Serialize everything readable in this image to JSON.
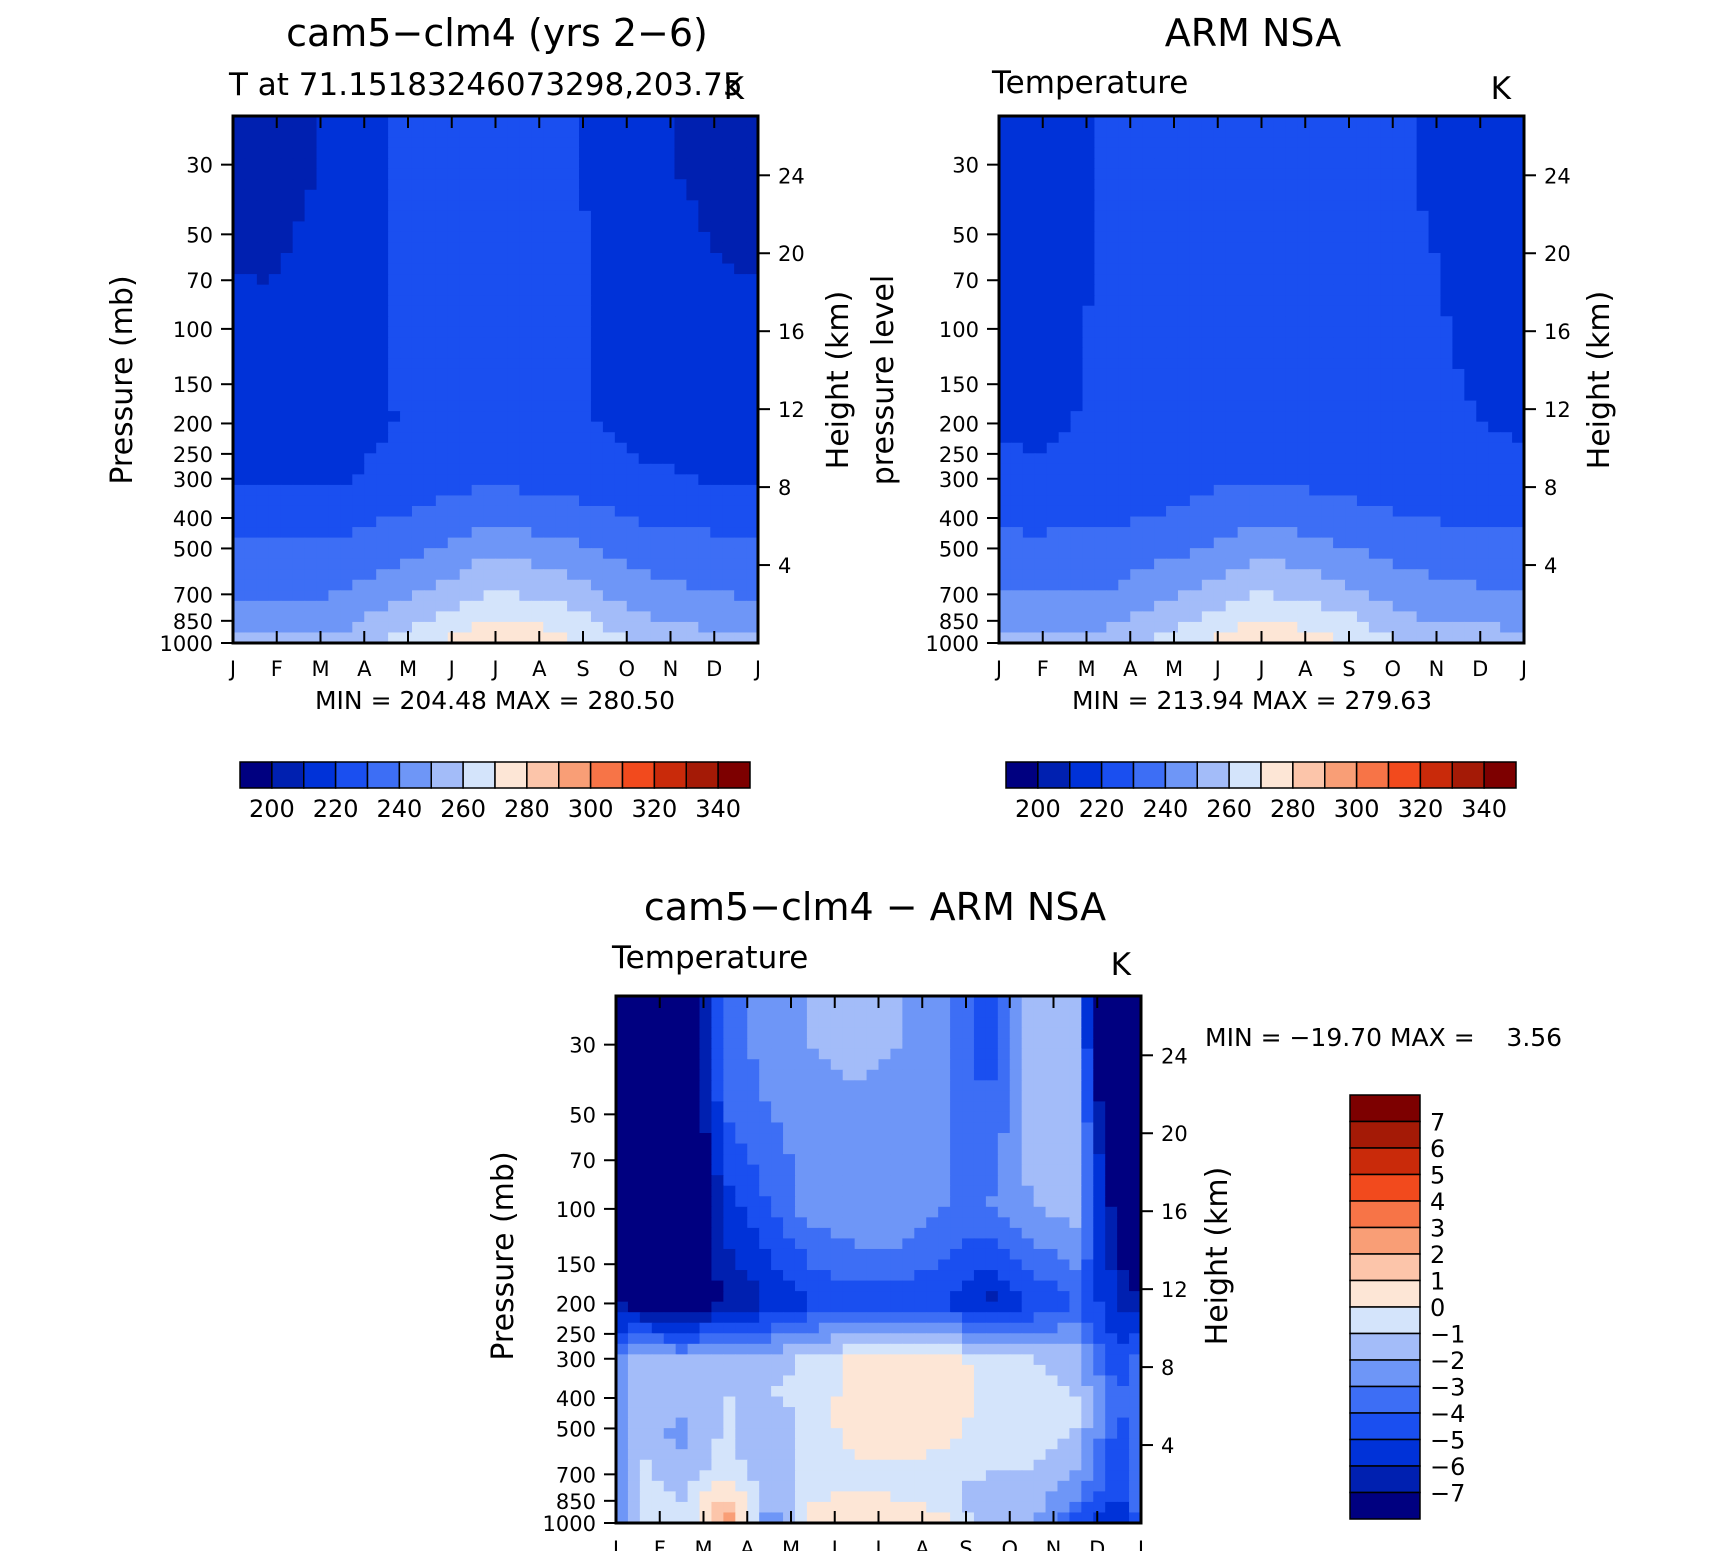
{
  "figure": {
    "type": "contour-panel-set",
    "month_ticks": [
      "J",
      "F",
      "M",
      "A",
      "M",
      "J",
      "J",
      "A",
      "S",
      "O",
      "N",
      "D",
      "J"
    ]
  },
  "colors": {
    "temperature_scale": [
      "#000080",
      "#0020b0",
      "#0032d8",
      "#1a4ff0",
      "#3d6ef5",
      "#6e96f7",
      "#a3bcf9",
      "#d4e4fb",
      "#fde6d6",
      "#fcc5aa",
      "#f99e76",
      "#f77447",
      "#f24a1d",
      "#c92a0a",
      "#a41a06",
      "#7d0000"
    ],
    "difference_scale": [
      "#000080",
      "#0020b0",
      "#0032d8",
      "#1a4ff0",
      "#3d6ef5",
      "#6e96f7",
      "#a3bcf9",
      "#d4e4fb",
      "#fde6d6",
      "#fcc5aa",
      "#f99e76",
      "#f77447",
      "#f24a1d",
      "#c92a0a",
      "#a41a06",
      "#7d0000"
    ]
  },
  "chart_data": [
    {
      "id": "model",
      "type": "heatmap",
      "title": "cam5−clm4 (yrs 2−6)",
      "subtitle_left": "T at 71.15183246073298,203.75",
      "subtitle_right": "K",
      "xlabel": "",
      "ylabel": "Pressure (mb)",
      "ylabel_right": "Height (km)",
      "x_ticks": [
        "J",
        "F",
        "M",
        "A",
        "M",
        "J",
        "J",
        "A",
        "S",
        "O",
        "N",
        "D",
        "J"
      ],
      "y_ticks": [
        "30",
        "50",
        "70",
        "100",
        "150",
        "200",
        "250",
        "300",
        "400",
        "500",
        "700",
        "850",
        "1000"
      ],
      "y_ticks_right": [
        "24",
        "20",
        "16",
        "12",
        "8",
        "4"
      ],
      "y_scale": "log",
      "ylim": [
        1000,
        21
      ],
      "min_max_text": "MIN = 204.48 MAX = 280.50",
      "min": 204.48,
      "max": 280.5,
      "contour_levels": [
        200,
        210,
        220,
        230,
        240,
        250,
        260,
        270,
        280,
        290,
        300,
        310,
        320,
        330,
        340
      ],
      "colorbar_ticks": [
        "200",
        "220",
        "240",
        "260",
        "280",
        "300",
        "320",
        "340"
      ],
      "profiles": {
        "months": [
          "Jan",
          "Mar",
          "May",
          "Jul",
          "Sep",
          "Nov",
          "Dec"
        ],
        "pressure_levels": [
          1000,
          850,
          700,
          500,
          400,
          300,
          200,
          100,
          50,
          30
        ],
        "temperature": [
          [
            252,
            244,
            238,
            232,
            226,
            218,
            214,
            212,
            208,
            205
          ],
          [
            255,
            247,
            240,
            233,
            227,
            219,
            216,
            216,
            214,
            213
          ],
          [
            268,
            260,
            250,
            238,
            232,
            226,
            222,
            224,
            225,
            225
          ],
          [
            280,
            272,
            262,
            248,
            238,
            228,
            226,
            227,
            229,
            230
          ],
          [
            272,
            265,
            255,
            242,
            234,
            226,
            222,
            222,
            222,
            221
          ],
          [
            258,
            251,
            244,
            235,
            229,
            222,
            216,
            216,
            214,
            212
          ],
          [
            254,
            246,
            240,
            233,
            227,
            219,
            215,
            212,
            209,
            207
          ]
        ]
      }
    },
    {
      "id": "obs",
      "type": "heatmap",
      "title": "ARM NSA",
      "subtitle_left": "Temperature",
      "subtitle_right": "K",
      "xlabel": "",
      "ylabel": "pressure level",
      "ylabel_right": "Height (km)",
      "x_ticks": [
        "J",
        "F",
        "M",
        "A",
        "M",
        "J",
        "J",
        "A",
        "S",
        "O",
        "N",
        "D",
        "J"
      ],
      "y_ticks": [
        "30",
        "50",
        "70",
        "100",
        "150",
        "200",
        "250",
        "300",
        "400",
        "500",
        "700",
        "850",
        "1000"
      ],
      "y_ticks_right": [
        "24",
        "20",
        "16",
        "12",
        "8",
        "4"
      ],
      "y_scale": "log",
      "ylim": [
        1000,
        21
      ],
      "min_max_text": "MIN = 213.94 MAX = 279.63",
      "min": 213.94,
      "max": 279.63,
      "contour_levels": [
        200,
        210,
        220,
        230,
        240,
        250,
        260,
        270,
        280,
        290,
        300,
        310,
        320,
        330,
        340
      ],
      "colorbar_ticks": [
        "200",
        "220",
        "240",
        "260",
        "280",
        "300",
        "320",
        "340"
      ],
      "profiles": {
        "months": [
          "Jan",
          "Mar",
          "May",
          "Jul",
          "Sep",
          "Nov",
          "Dec"
        ],
        "pressure_levels": [
          1000,
          850,
          700,
          500,
          400,
          300,
          200,
          100,
          50,
          30
        ],
        "temperature": [
          [
            254,
            246,
            240,
            233,
            227,
            221,
            219,
            218,
            217,
            216
          ],
          [
            256,
            248,
            241,
            234,
            228,
            221,
            221,
            221,
            221,
            221
          ],
          [
            268,
            260,
            250,
            238,
            232,
            227,
            226,
            226,
            226,
            226
          ],
          [
            279,
            271,
            261,
            247,
            238,
            230,
            228,
            228,
            228,
            228
          ],
          [
            272,
            264,
            254,
            241,
            234,
            227,
            225,
            225,
            225,
            225
          ],
          [
            259,
            251,
            244,
            236,
            230,
            223,
            222,
            222,
            221,
            220
          ],
          [
            256,
            248,
            241,
            234,
            228,
            221,
            220,
            218,
            217,
            216
          ]
        ]
      }
    },
    {
      "id": "diff",
      "type": "heatmap",
      "title": "cam5−clm4 − ARM NSA",
      "subtitle_left": "Temperature",
      "subtitle_right": "K",
      "xlabel": "",
      "ylabel": "Pressure (mb)",
      "ylabel_right": "Height (km)",
      "x_ticks": [
        "J",
        "F",
        "M",
        "A",
        "M",
        "J",
        "J",
        "A",
        "S",
        "O",
        "N",
        "D",
        "J"
      ],
      "y_ticks": [
        "30",
        "50",
        "70",
        "100",
        "150",
        "200",
        "250",
        "300",
        "400",
        "500",
        "700",
        "850",
        "1000"
      ],
      "y_ticks_right": [
        "24",
        "20",
        "16",
        "12",
        "8",
        "4"
      ],
      "y_scale": "log",
      "ylim": [
        1000,
        21
      ],
      "min_max_text": "MIN = −19.70 MAX =    3.56",
      "min": -19.7,
      "max": 3.56,
      "contour_levels": [
        -7,
        -6,
        -5,
        -4,
        -3,
        -2,
        -1,
        0,
        1,
        2,
        3,
        4,
        5,
        6,
        7
      ],
      "colorbar_ticks": [
        "7",
        "6",
        "5",
        "4",
        "3",
        "2",
        "1",
        "0",
        "−1",
        "−2",
        "−3",
        "−4",
        "−5",
        "−6",
        "−7"
      ],
      "profiles": {
        "months": [
          "Jan",
          "Feb",
          "Mar",
          "Apr",
          "May",
          "Jun",
          "Jul",
          "Aug",
          "Sep",
          "Oct",
          "Nov",
          "Dec"
        ],
        "pressure_levels": [
          1000,
          850,
          700,
          500,
          400,
          300,
          200,
          100,
          50,
          30
        ],
        "difference": [
          [
            -0.5,
            -0.6,
            -0.8,
            -1.0,
            -1.2,
            -1.5,
            -7.5,
            -12.0,
            -14.0,
            -15.0
          ],
          [
            -1.0,
            -1.0,
            -1.5,
            -2.5,
            -1.5,
            -2.0,
            -8.0,
            -11.0,
            -10.0,
            -9.0
          ],
          [
            3.0,
            1.5,
            -0.5,
            -0.8,
            -1.0,
            -1.5,
            -7.0,
            -5.5,
            -4.0,
            -3.5
          ],
          [
            -3.0,
            -2.0,
            -1.5,
            -2.0,
            -1.0,
            -1.5,
            -6.0,
            -4.0,
            -3.0,
            -2.5
          ],
          [
            0.5,
            0.0,
            -0.5,
            -0.5,
            -0.5,
            -0.8,
            -5.0,
            -2.5,
            -2.5,
            -2.0
          ],
          [
            1.0,
            0.2,
            -0.3,
            0.5,
            0.5,
            0.2,
            -4.5,
            -2.0,
            -2.5,
            -1.5
          ],
          [
            0.8,
            0.0,
            -0.3,
            0.8,
            0.8,
            0.5,
            -4.5,
            -2.0,
            -2.5,
            -2.0
          ],
          [
            0.3,
            -0.5,
            -0.5,
            0.5,
            0.8,
            0.5,
            -5.0,
            -3.0,
            -3.0,
            -3.0
          ],
          [
            -1.5,
            -2.0,
            -1.0,
            -0.5,
            -0.3,
            -0.5,
            -6.5,
            -3.0,
            -4.0,
            -4.5
          ],
          [
            -1.8,
            -1.5,
            -1.0,
            -0.5,
            -0.5,
            -1.0,
            -5.0,
            -2.0,
            -1.5,
            -1.5
          ],
          [
            -4.5,
            -3.0,
            -2.0,
            -1.0,
            -1.0,
            -1.5,
            -4.0,
            -1.5,
            -1.5,
            -2.0
          ],
          [
            -6.5,
            -5.5,
            -5.0,
            -4.5,
            -4.0,
            -5.0,
            -6.0,
            -8.0,
            -11.0,
            -13.0
          ]
        ]
      }
    }
  ]
}
